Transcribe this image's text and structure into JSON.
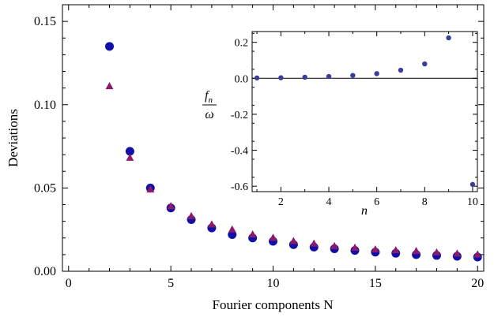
{
  "chart_data": [
    {
      "type": "scatter",
      "title": "",
      "xlabel": "Fourier components N",
      "ylabel": "Deviations",
      "xlim": [
        -0.3,
        20.3
      ],
      "ylim": [
        0,
        0.16
      ],
      "x_ticks": [
        0,
        5,
        10,
        15,
        20
      ],
      "y_ticks": [
        0.0,
        0.05,
        0.1,
        0.15
      ],
      "x_tick_labels": [
        "0",
        "5",
        "10",
        "15",
        "20"
      ],
      "y_tick_labels": [
        "0.00",
        "0.05",
        "0.10",
        "0.15"
      ],
      "grid": false,
      "series": [
        {
          "marker": "circle",
          "color": "#1010a8",
          "x": [
            2,
            3,
            4,
            5,
            6,
            7,
            8,
            9,
            10,
            11,
            12,
            13,
            14,
            15,
            16,
            17,
            18,
            19,
            20
          ],
          "y": [
            0.135,
            0.072,
            0.05,
            0.038,
            0.031,
            0.026,
            0.022,
            0.02,
            0.018,
            0.016,
            0.0145,
            0.0135,
            0.0125,
            0.0115,
            0.0108,
            0.01,
            0.0095,
            0.009,
            0.0085
          ]
        },
        {
          "marker": "triangle",
          "color": "#8b1a6b",
          "x": [
            2,
            3,
            4,
            5,
            6,
            7,
            8,
            9,
            10,
            11,
            12,
            13,
            14,
            15,
            16,
            17,
            18,
            19,
            20
          ],
          "y": [
            0.111,
            0.068,
            0.049,
            0.039,
            0.033,
            0.028,
            0.025,
            0.022,
            0.02,
            0.018,
            0.0165,
            0.015,
            0.014,
            0.013,
            0.0125,
            0.012,
            0.0112,
            0.0105,
            0.01
          ]
        }
      ]
    },
    {
      "type": "scatter",
      "title": "",
      "xlabel": "n",
      "ylabel_numerator": "f_n",
      "ylabel_numerator_main": "f",
      "ylabel_numerator_sub": "n",
      "ylabel_denominator": "ω",
      "xlim": [
        0.8,
        10.2
      ],
      "ylim": [
        -0.63,
        0.26
      ],
      "x_ticks": [
        2,
        4,
        6,
        8,
        10
      ],
      "y_ticks": [
        0.2,
        0.0,
        -0.2,
        -0.4,
        -0.6
      ],
      "x_tick_labels": [
        "2",
        "4",
        "6",
        "8",
        "10"
      ],
      "y_tick_labels": [
        "0.2",
        "0.0",
        "-0.2",
        "-0.4",
        "-0.6"
      ],
      "zero_line": true,
      "grid": false,
      "series": [
        {
          "marker": "circle",
          "color": "#3b3b9a",
          "x": [
            1,
            2,
            3,
            4,
            5,
            6,
            7,
            8,
            9,
            10
          ],
          "y": [
            0.002,
            0.003,
            0.006,
            0.01,
            0.016,
            0.026,
            0.045,
            0.08,
            0.225,
            -0.59
          ]
        }
      ]
    }
  ]
}
